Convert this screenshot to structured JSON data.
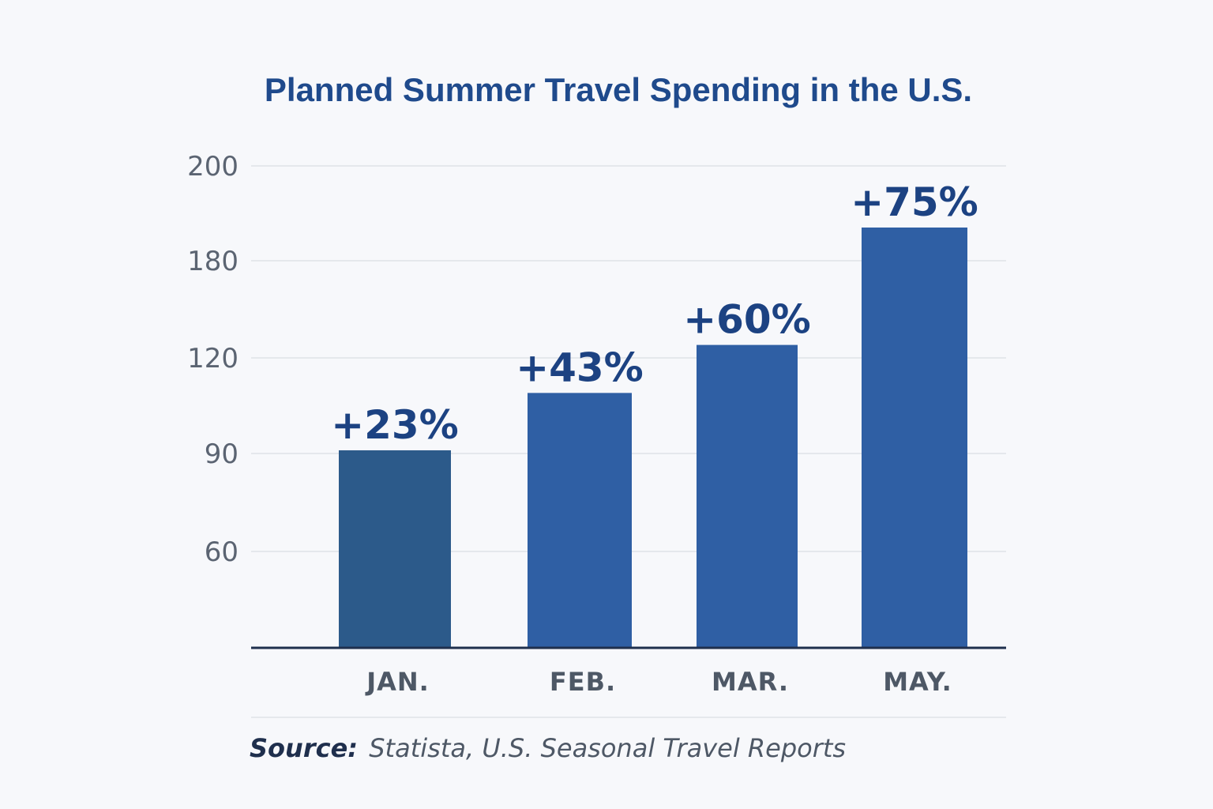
{
  "chart_data": {
    "type": "bar",
    "title": "Planned Summer Travel Spending in the U.S.",
    "xlabel": "",
    "ylabel": "",
    "categories": [
      "JAN.",
      "FEB.",
      "MAR.",
      "MAY."
    ],
    "values": [
      91,
      109,
      128,
      187
    ],
    "data_labels": [
      "+23%",
      "+43%",
      "+60%",
      "+75%"
    ],
    "y_ticks": [
      {
        "value": 60,
        "label": "60"
      },
      {
        "value": 90,
        "label": "90"
      },
      {
        "value": 120,
        "label": "120"
      },
      {
        "value": 180,
        "label": "180"
      },
      {
        "value": 200,
        "label": "200"
      }
    ],
    "ylim": [
      30,
      200
    ],
    "grid": true,
    "legend": "none"
  },
  "source": {
    "prefix": "Source:",
    "text": " Statista, U.S. Seasonal Travel Reports"
  },
  "colors": {
    "title": "#1f4a8c",
    "bar_first": "#2c5a8a",
    "bar": "#2f5fa4",
    "data_label": "#1c4282",
    "grid": "#dfe2e8",
    "axis": "#1f2f4d",
    "background": "#f7f8fb"
  }
}
